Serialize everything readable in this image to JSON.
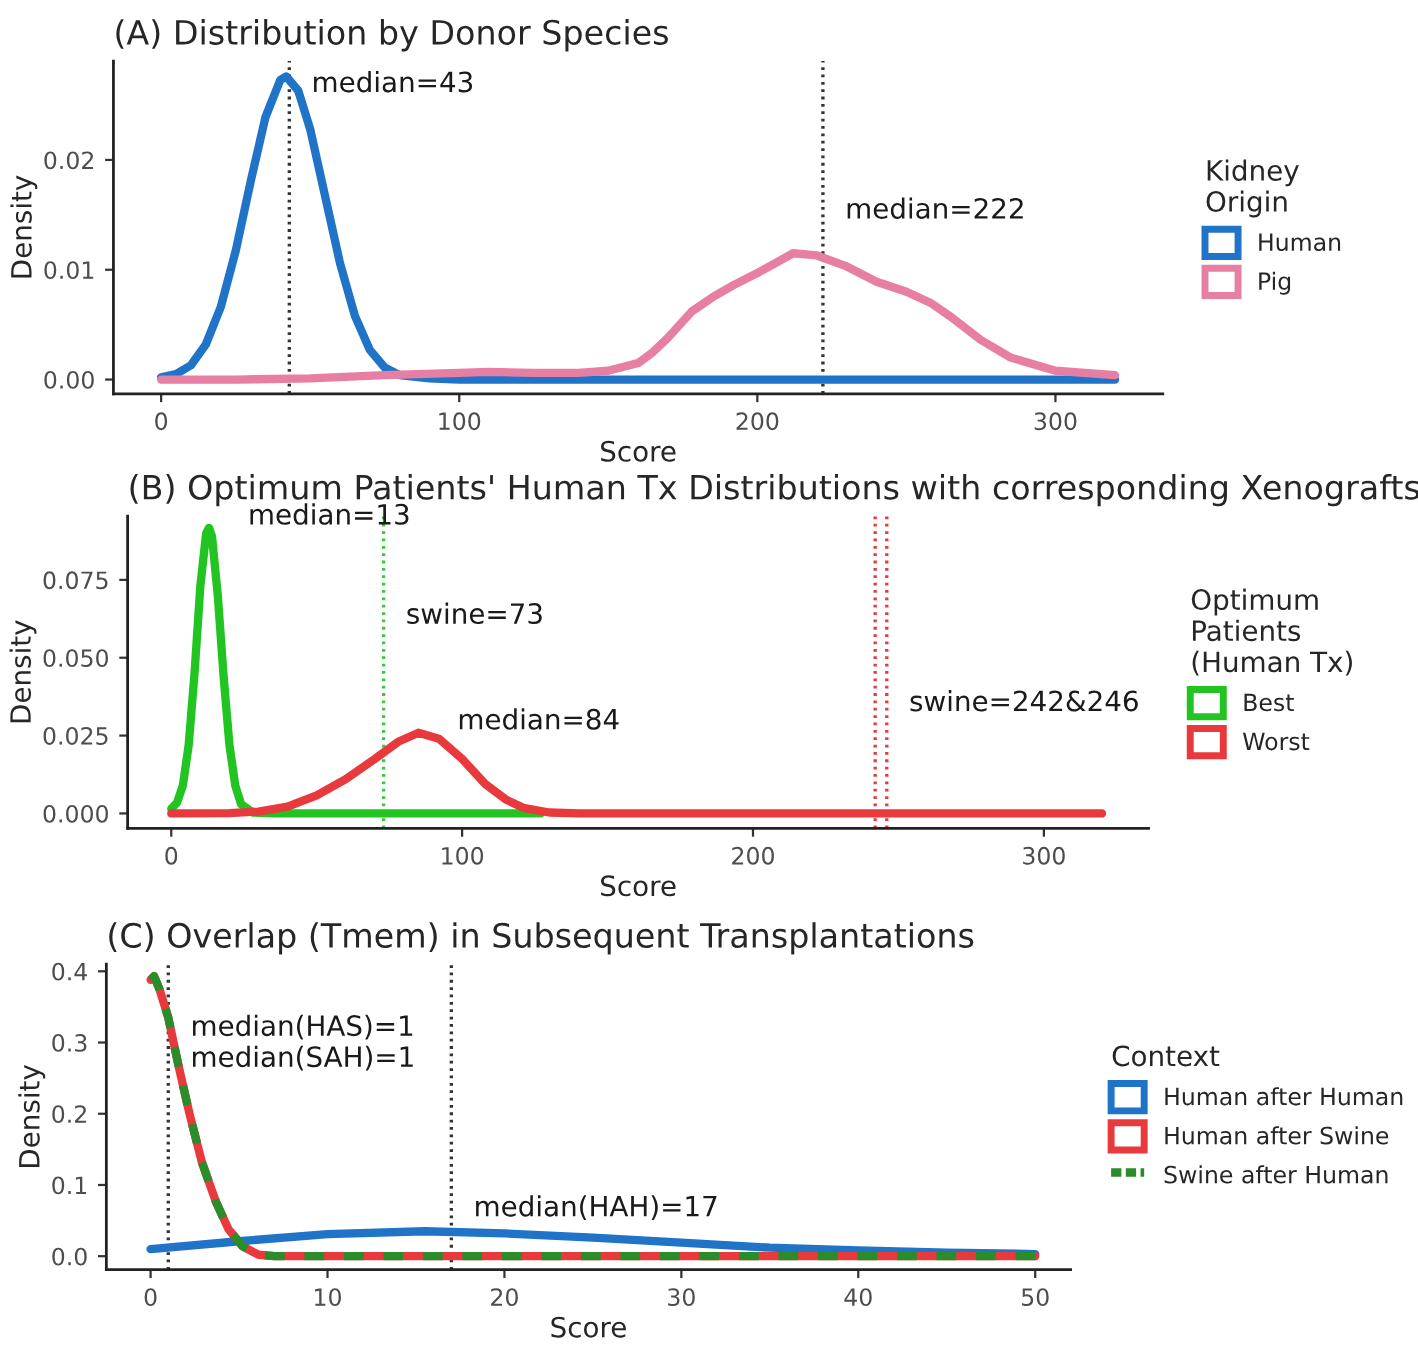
{
  "chart_data": [
    {
      "type": "line",
      "title": "(A) Distribution by Donor Species",
      "xlabel": "Score",
      "ylabel": "Density",
      "legend_title": "Kidney\nOrigin",
      "legend": "right",
      "xlim": [
        -16,
        336
      ],
      "ylim": [
        -0.0013,
        0.029
      ],
      "xticks": [
        0,
        100,
        200,
        300
      ],
      "yticks": [
        {
          "value": 0,
          "label": "0.00"
        },
        {
          "value": 0.01,
          "label": "0.01"
        },
        {
          "value": 0.02,
          "label": "0.02"
        }
      ],
      "series": [
        {
          "name": "Human",
          "color": "#1f74c8",
          "x": [
            0,
            5,
            10,
            15,
            20,
            25,
            30,
            35,
            40,
            42,
            46,
            50,
            55,
            60,
            65,
            70,
            75,
            80,
            90,
            100,
            150,
            200,
            250,
            300,
            320
          ],
          "values": [
            0.0002,
            0.0005,
            0.0013,
            0.0032,
            0.0066,
            0.0117,
            0.018,
            0.0239,
            0.0273,
            0.0276,
            0.0263,
            0.0228,
            0.0167,
            0.0106,
            0.0058,
            0.0027,
            0.0011,
            0.0004,
            0.0001,
            0,
            0,
            0,
            0,
            0,
            0
          ]
        },
        {
          "name": "Pig",
          "color": "#e67fa3",
          "x": [
            0,
            25,
            50,
            75,
            100,
            110,
            125,
            140,
            150,
            160,
            165,
            170,
            178,
            185,
            192,
            200,
            212,
            220,
            230,
            240,
            250,
            258,
            265,
            275,
            285,
            300,
            320
          ],
          "values": [
            0,
            0,
            0.0001,
            0.0004,
            0.0006,
            0.0007,
            0.0006,
            0.0006,
            0.0008,
            0.0015,
            0.0025,
            0.0038,
            0.0062,
            0.0075,
            0.0086,
            0.0097,
            0.0115,
            0.0113,
            0.0103,
            0.0089,
            0.008,
            0.007,
            0.0057,
            0.0036,
            0.002,
            0.0008,
            0.0004
          ]
        }
      ],
      "ref_lines": [
        {
          "axis": "x",
          "value": 43,
          "label": "median=43",
          "color": "#333333",
          "line_style": "dotted"
        },
        {
          "axis": "x",
          "value": 222,
          "label": "median=222",
          "color": "#333333",
          "line_style": "dotted"
        }
      ]
    },
    {
      "type": "line",
      "title": "(B) Optimum Patients' Human Tx Distributions with corresponding Xenografts",
      "xlabel": "Score",
      "ylabel": "Density",
      "legend_title": "Optimum\nPatients\n(Human Tx)",
      "legend": "right",
      "xlim": [
        -15,
        336
      ],
      "ylim": [
        -0.0048,
        0.0955
      ],
      "xticks": [
        0,
        100,
        200,
        300
      ],
      "yticks": [
        {
          "value": 0,
          "label": "0.000"
        },
        {
          "value": 0.025,
          "label": "0.025"
        },
        {
          "value": 0.05,
          "label": "0.050"
        },
        {
          "value": 0.075,
          "label": "0.075"
        }
      ],
      "series": [
        {
          "name": "Best",
          "color": "#22c422",
          "x": [
            0,
            2,
            4,
            6,
            8,
            10,
            12,
            13,
            14,
            16,
            18,
            20,
            22,
            24,
            28,
            35,
            50,
            100,
            127
          ],
          "values": [
            0.0015,
            0.0035,
            0.009,
            0.022,
            0.045,
            0.073,
            0.09,
            0.0917,
            0.089,
            0.07,
            0.044,
            0.022,
            0.009,
            0.003,
            0.0003,
            0,
            0,
            0,
            0
          ]
        },
        {
          "name": "Worst",
          "color": "#e8393c",
          "x": [
            0,
            20,
            30,
            40,
            50,
            60,
            70,
            78,
            85,
            92,
            100,
            108,
            115,
            121,
            130,
            140,
            200,
            320
          ],
          "values": [
            0,
            0.0001,
            0.0006,
            0.0022,
            0.0058,
            0.011,
            0.0175,
            0.023,
            0.0259,
            0.024,
            0.0175,
            0.0094,
            0.0045,
            0.0018,
            0.0003,
            0,
            0,
            0
          ]
        }
      ],
      "ref_lines": [
        {
          "axis": "x",
          "value": 73,
          "label": "swine=73",
          "color": "#3cc83c",
          "line_style": "dotted"
        },
        {
          "axis": "x",
          "value": 242,
          "color": "#e8393c",
          "line_style": "dotted"
        },
        {
          "axis": "x",
          "value": 246,
          "label": "swine=242&246",
          "color": "#e8393c",
          "line_style": "dotted"
        }
      ],
      "annotations": [
        {
          "text": "median=13",
          "x": 13,
          "y": 0.0917
        },
        {
          "text": "median=84",
          "x": 85,
          "y": 0.0259
        }
      ]
    },
    {
      "type": "line",
      "title": "(C) Overlap (Tmem) in Subsequent Transplantations",
      "xlabel": "Score",
      "ylabel": "Density",
      "legend_title": "Context",
      "legend": "right",
      "xlim": [
        -2.5,
        52
      ],
      "ylim": [
        -0.019,
        0.41
      ],
      "xticks": [
        0,
        10,
        20,
        30,
        40,
        50
      ],
      "yticks": [
        {
          "value": 0,
          "label": "0.0"
        },
        {
          "value": 0.1,
          "label": "0.1"
        },
        {
          "value": 0.2,
          "label": "0.2"
        },
        {
          "value": 0.3,
          "label": "0.3"
        },
        {
          "value": 0.4,
          "label": "0.4"
        }
      ],
      "series": [
        {
          "name": "Human after Human",
          "color": "#1f74c8",
          "x": [
            0,
            5,
            10,
            15.5,
            20,
            25,
            30,
            35,
            40,
            45,
            50
          ],
          "values": [
            0.01,
            0.021,
            0.031,
            0.035,
            0.032,
            0.026,
            0.019,
            0.012,
            0.008,
            0.005,
            0.003
          ]
        },
        {
          "name": "Human after Swine",
          "color": "#e8393c",
          "x": [
            0,
            0.2,
            0.5,
            1,
            1.6,
            2.2,
            2.9,
            3.7,
            4.4,
            5.2,
            6.1,
            7,
            10,
            20,
            30,
            40,
            50
          ],
          "values": [
            0.388,
            0.393,
            0.375,
            0.335,
            0.265,
            0.2,
            0.132,
            0.076,
            0.038,
            0.014,
            0.002,
            0,
            0,
            0,
            0,
            0,
            0
          ]
        },
        {
          "name": "Swine after Human",
          "color": "#2a8c2a",
          "line_style": "dashed",
          "x": [
            0,
            0.2,
            0.5,
            1,
            1.6,
            2.2,
            2.9,
            3.7,
            4.4,
            5.2,
            6.1,
            7,
            10,
            20,
            30,
            40,
            50
          ],
          "values": [
            0.388,
            0.393,
            0.375,
            0.335,
            0.265,
            0.2,
            0.132,
            0.076,
            0.038,
            0.014,
            0.002,
            0,
            0,
            0,
            0,
            0,
            0
          ]
        }
      ],
      "ref_lines": [
        {
          "axis": "x",
          "value": 1,
          "label": "median(HAS)=1\nmedian(SAH)=1",
          "color": "#333333",
          "line_style": "dotted"
        },
        {
          "axis": "x",
          "value": 17,
          "label": "median(HAH)=17",
          "color": "#333333",
          "line_style": "dotted"
        }
      ]
    }
  ]
}
